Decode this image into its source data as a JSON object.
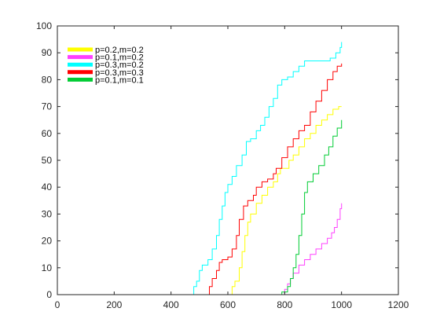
{
  "chart_data": {
    "type": "line",
    "title": "",
    "xlabel": "",
    "ylabel": "",
    "xlim": [
      0,
      1200
    ],
    "ylim": [
      0,
      100
    ],
    "xticks": [
      0,
      200,
      400,
      600,
      800,
      1000,
      1200
    ],
    "yticks": [
      0,
      10,
      20,
      30,
      40,
      50,
      60,
      70,
      80,
      90,
      100
    ],
    "grid": false,
    "legend_position": "top-left",
    "series": [
      {
        "name": "p=0.2,m=0.2",
        "color": "#ffff00",
        "points": [
          [
            0,
            0
          ],
          [
            610,
            0
          ],
          [
            615,
            3
          ],
          [
            625,
            5
          ],
          [
            640,
            10
          ],
          [
            650,
            16
          ],
          [
            660,
            22
          ],
          [
            670,
            27
          ],
          [
            680,
            30
          ],
          [
            700,
            34
          ],
          [
            720,
            37
          ],
          [
            740,
            40
          ],
          [
            760,
            42
          ],
          [
            775,
            45
          ],
          [
            785,
            47
          ],
          [
            800,
            47
          ],
          [
            815,
            50
          ],
          [
            830,
            52
          ],
          [
            850,
            55
          ],
          [
            870,
            58
          ],
          [
            890,
            60
          ],
          [
            910,
            63
          ],
          [
            930,
            65
          ],
          [
            950,
            67
          ],
          [
            970,
            69
          ],
          [
            990,
            70
          ],
          [
            1000,
            70
          ]
        ]
      },
      {
        "name": "p=0.1,m=0.2",
        "color": "#ff40ff",
        "points": [
          [
            0,
            0
          ],
          [
            790,
            0
          ],
          [
            800,
            2
          ],
          [
            810,
            4
          ],
          [
            820,
            6
          ],
          [
            830,
            8
          ],
          [
            850,
            11
          ],
          [
            870,
            13
          ],
          [
            890,
            15
          ],
          [
            910,
            17
          ],
          [
            930,
            19
          ],
          [
            950,
            21
          ],
          [
            965,
            23
          ],
          [
            975,
            25
          ],
          [
            985,
            28
          ],
          [
            995,
            32
          ],
          [
            1000,
            34
          ]
        ]
      },
      {
        "name": "p=0.3,m=0.2",
        "color": "#00ffff",
        "points": [
          [
            0,
            0
          ],
          [
            475,
            0
          ],
          [
            480,
            3
          ],
          [
            490,
            5
          ],
          [
            500,
            9
          ],
          [
            510,
            11
          ],
          [
            530,
            13
          ],
          [
            545,
            17
          ],
          [
            560,
            22
          ],
          [
            570,
            28
          ],
          [
            580,
            33
          ],
          [
            590,
            38
          ],
          [
            600,
            41
          ],
          [
            615,
            44
          ],
          [
            630,
            48
          ],
          [
            650,
            52
          ],
          [
            665,
            57
          ],
          [
            680,
            58
          ],
          [
            700,
            61
          ],
          [
            715,
            63
          ],
          [
            730,
            66
          ],
          [
            745,
            70
          ],
          [
            760,
            73
          ],
          [
            775,
            78
          ],
          [
            790,
            80
          ],
          [
            810,
            81
          ],
          [
            830,
            83
          ],
          [
            850,
            85
          ],
          [
            870,
            87
          ],
          [
            900,
            87
          ],
          [
            930,
            87
          ],
          [
            960,
            88
          ],
          [
            980,
            90
          ],
          [
            995,
            92
          ],
          [
            1000,
            94
          ]
        ]
      },
      {
        "name": "p=0.3,m=0.3",
        "color": "#ff0000",
        "points": [
          [
            0,
            0
          ],
          [
            530,
            0
          ],
          [
            535,
            3
          ],
          [
            545,
            6
          ],
          [
            560,
            9
          ],
          [
            570,
            12
          ],
          [
            580,
            13
          ],
          [
            600,
            14
          ],
          [
            615,
            17
          ],
          [
            630,
            22
          ],
          [
            640,
            28
          ],
          [
            655,
            33
          ],
          [
            670,
            35
          ],
          [
            690,
            37
          ],
          [
            700,
            40
          ],
          [
            720,
            42
          ],
          [
            740,
            43
          ],
          [
            760,
            45
          ],
          [
            770,
            47
          ],
          [
            790,
            51
          ],
          [
            810,
            55
          ],
          [
            830,
            58
          ],
          [
            850,
            61
          ],
          [
            870,
            63
          ],
          [
            890,
            68
          ],
          [
            910,
            72
          ],
          [
            930,
            76
          ],
          [
            950,
            80
          ],
          [
            970,
            83
          ],
          [
            985,
            85
          ],
          [
            1000,
            86
          ]
        ]
      },
      {
        "name": "p=0.1,m=0.1",
        "color": "#00cc33",
        "points": [
          [
            0,
            0
          ],
          [
            780,
            0
          ],
          [
            790,
            1
          ],
          [
            800,
            1
          ],
          [
            810,
            3
          ],
          [
            820,
            6
          ],
          [
            830,
            10
          ],
          [
            840,
            15
          ],
          [
            850,
            22
          ],
          [
            860,
            30
          ],
          [
            870,
            38
          ],
          [
            880,
            42
          ],
          [
            900,
            45
          ],
          [
            920,
            48
          ],
          [
            940,
            52
          ],
          [
            955,
            55
          ],
          [
            970,
            59
          ],
          [
            985,
            62
          ],
          [
            1000,
            65
          ]
        ]
      }
    ]
  }
}
